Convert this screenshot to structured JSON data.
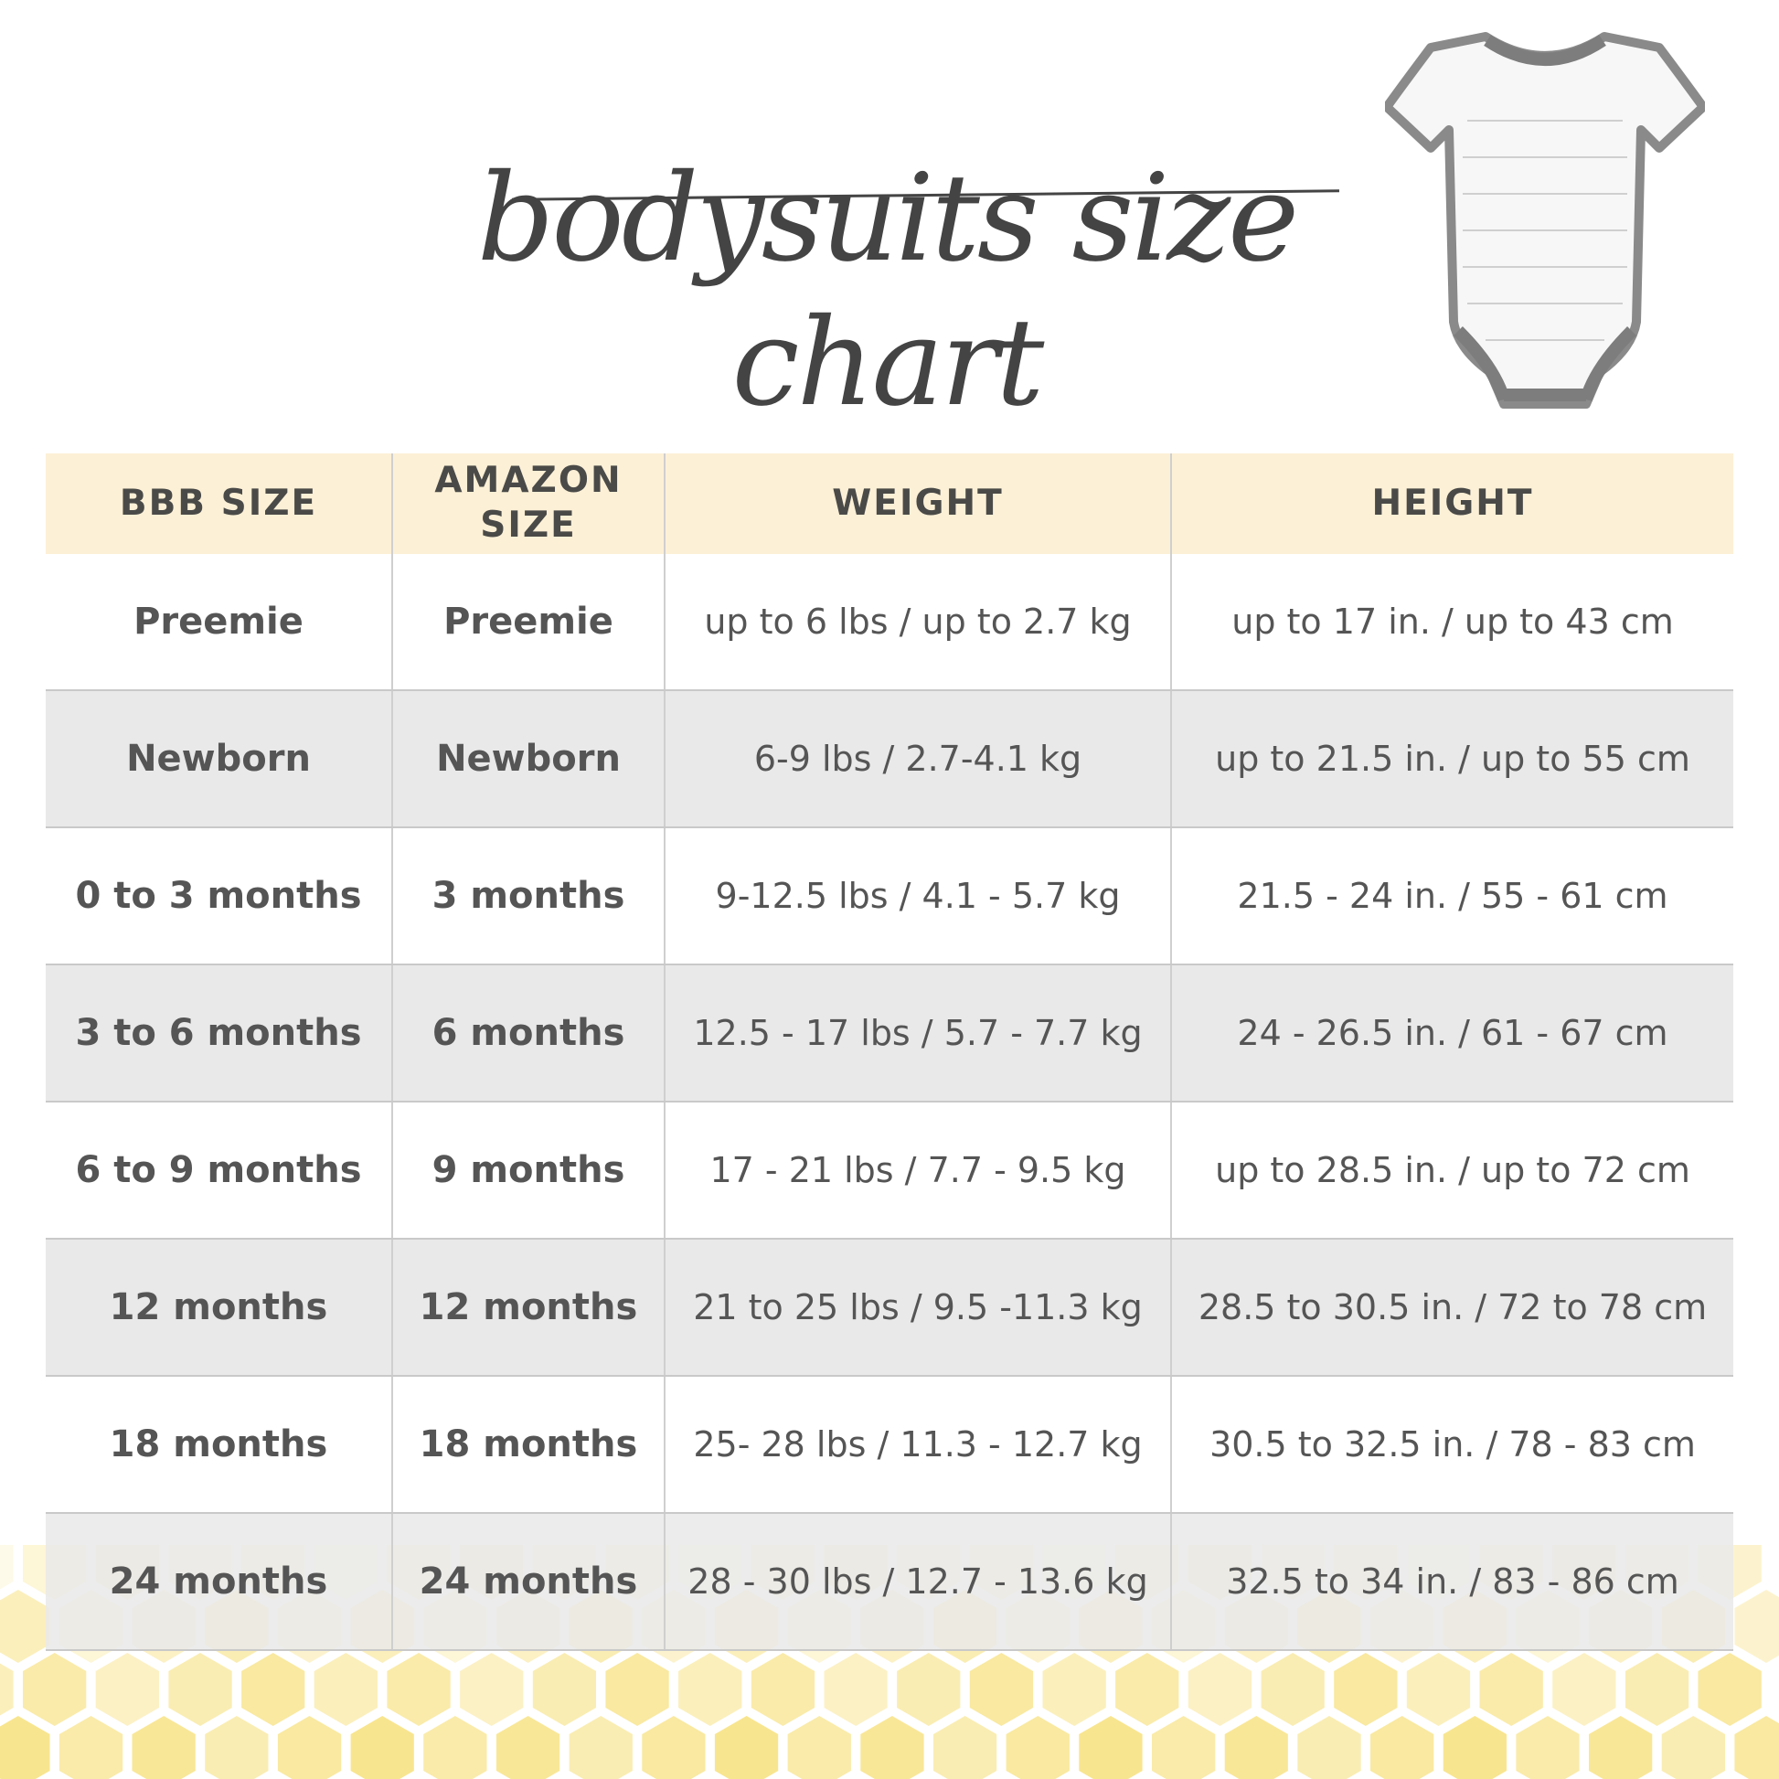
{
  "title": "bodysuits size chart",
  "colors": {
    "header_bg": "#fcf0d6",
    "alt_row_bg": "#e9e9e9",
    "text": "#4d4d4d",
    "honeycomb": "#f6dc6a"
  },
  "image": {
    "icon": "bodysuit-icon"
  },
  "table": {
    "headers": [
      "BBB SIZE",
      "AMAZON SIZE",
      "WEIGHT",
      "HEIGHT"
    ],
    "rows": [
      [
        "Preemie",
        "Preemie",
        "up to 6 lbs / up to 2.7 kg",
        "up to 17 in. / up to 43 cm"
      ],
      [
        "Newborn",
        "Newborn",
        "6-9 lbs / 2.7-4.1 kg",
        "up to 21.5 in. / up to 55 cm"
      ],
      [
        "0 to 3 months",
        "3 months",
        "9-12.5 lbs / 4.1 - 5.7 kg",
        "21.5 - 24 in. / 55 - 61 cm"
      ],
      [
        "3 to 6 months",
        "6 months",
        "12.5 - 17 lbs / 5.7 - 7.7 kg",
        "24 - 26.5 in. / 61 - 67 cm"
      ],
      [
        "6 to 9 months",
        "9 months",
        "17 - 21 lbs / 7.7 - 9.5 kg",
        "up to 28.5 in. / up to 72 cm"
      ],
      [
        "12 months",
        "12 months",
        "21 to 25 lbs / 9.5 -11.3 kg",
        "28.5 to 30.5 in. / 72 to 78 cm"
      ],
      [
        "18 months",
        "18 months",
        "25- 28 lbs / 11.3 - 12.7 kg",
        "30.5 to 32.5 in. / 78 - 83 cm"
      ],
      [
        "24 months",
        "24 months",
        "28 - 30 lbs / 12.7 - 13.6 kg",
        "32.5 to 34 in. / 83 - 86 cm"
      ]
    ]
  }
}
